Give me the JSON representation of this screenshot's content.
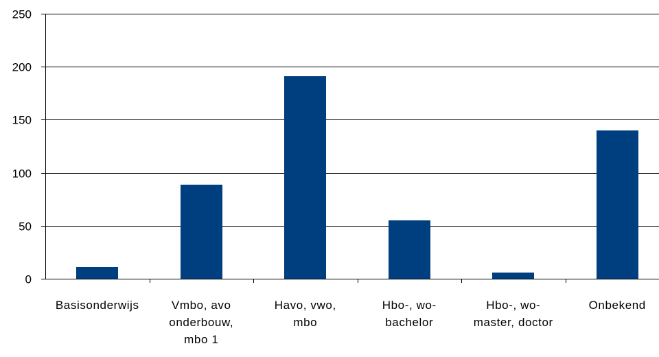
{
  "chart_data": {
    "type": "bar",
    "title": "",
    "xlabel": "",
    "ylabel": "",
    "categories": [
      [
        "Basisonderwijs"
      ],
      [
        "Vmbo, avo",
        "onderbouw,",
        "mbo 1"
      ],
      [
        "Havo, vwo,",
        "mbo"
      ],
      [
        "Hbo-, wo-",
        "bachelor"
      ],
      [
        "Hbo-, wo-",
        "master, doctor"
      ],
      [
        "Onbekend"
      ]
    ],
    "values": [
      11,
      89,
      191,
      55,
      6,
      140
    ],
    "ylim": [
      0,
      250
    ],
    "yticks": [
      0,
      50,
      100,
      150,
      200,
      250
    ],
    "grid": true,
    "legend": "none",
    "colors": {
      "bar": "#003F7F",
      "grid": "#000000",
      "axis": "#000000"
    }
  }
}
